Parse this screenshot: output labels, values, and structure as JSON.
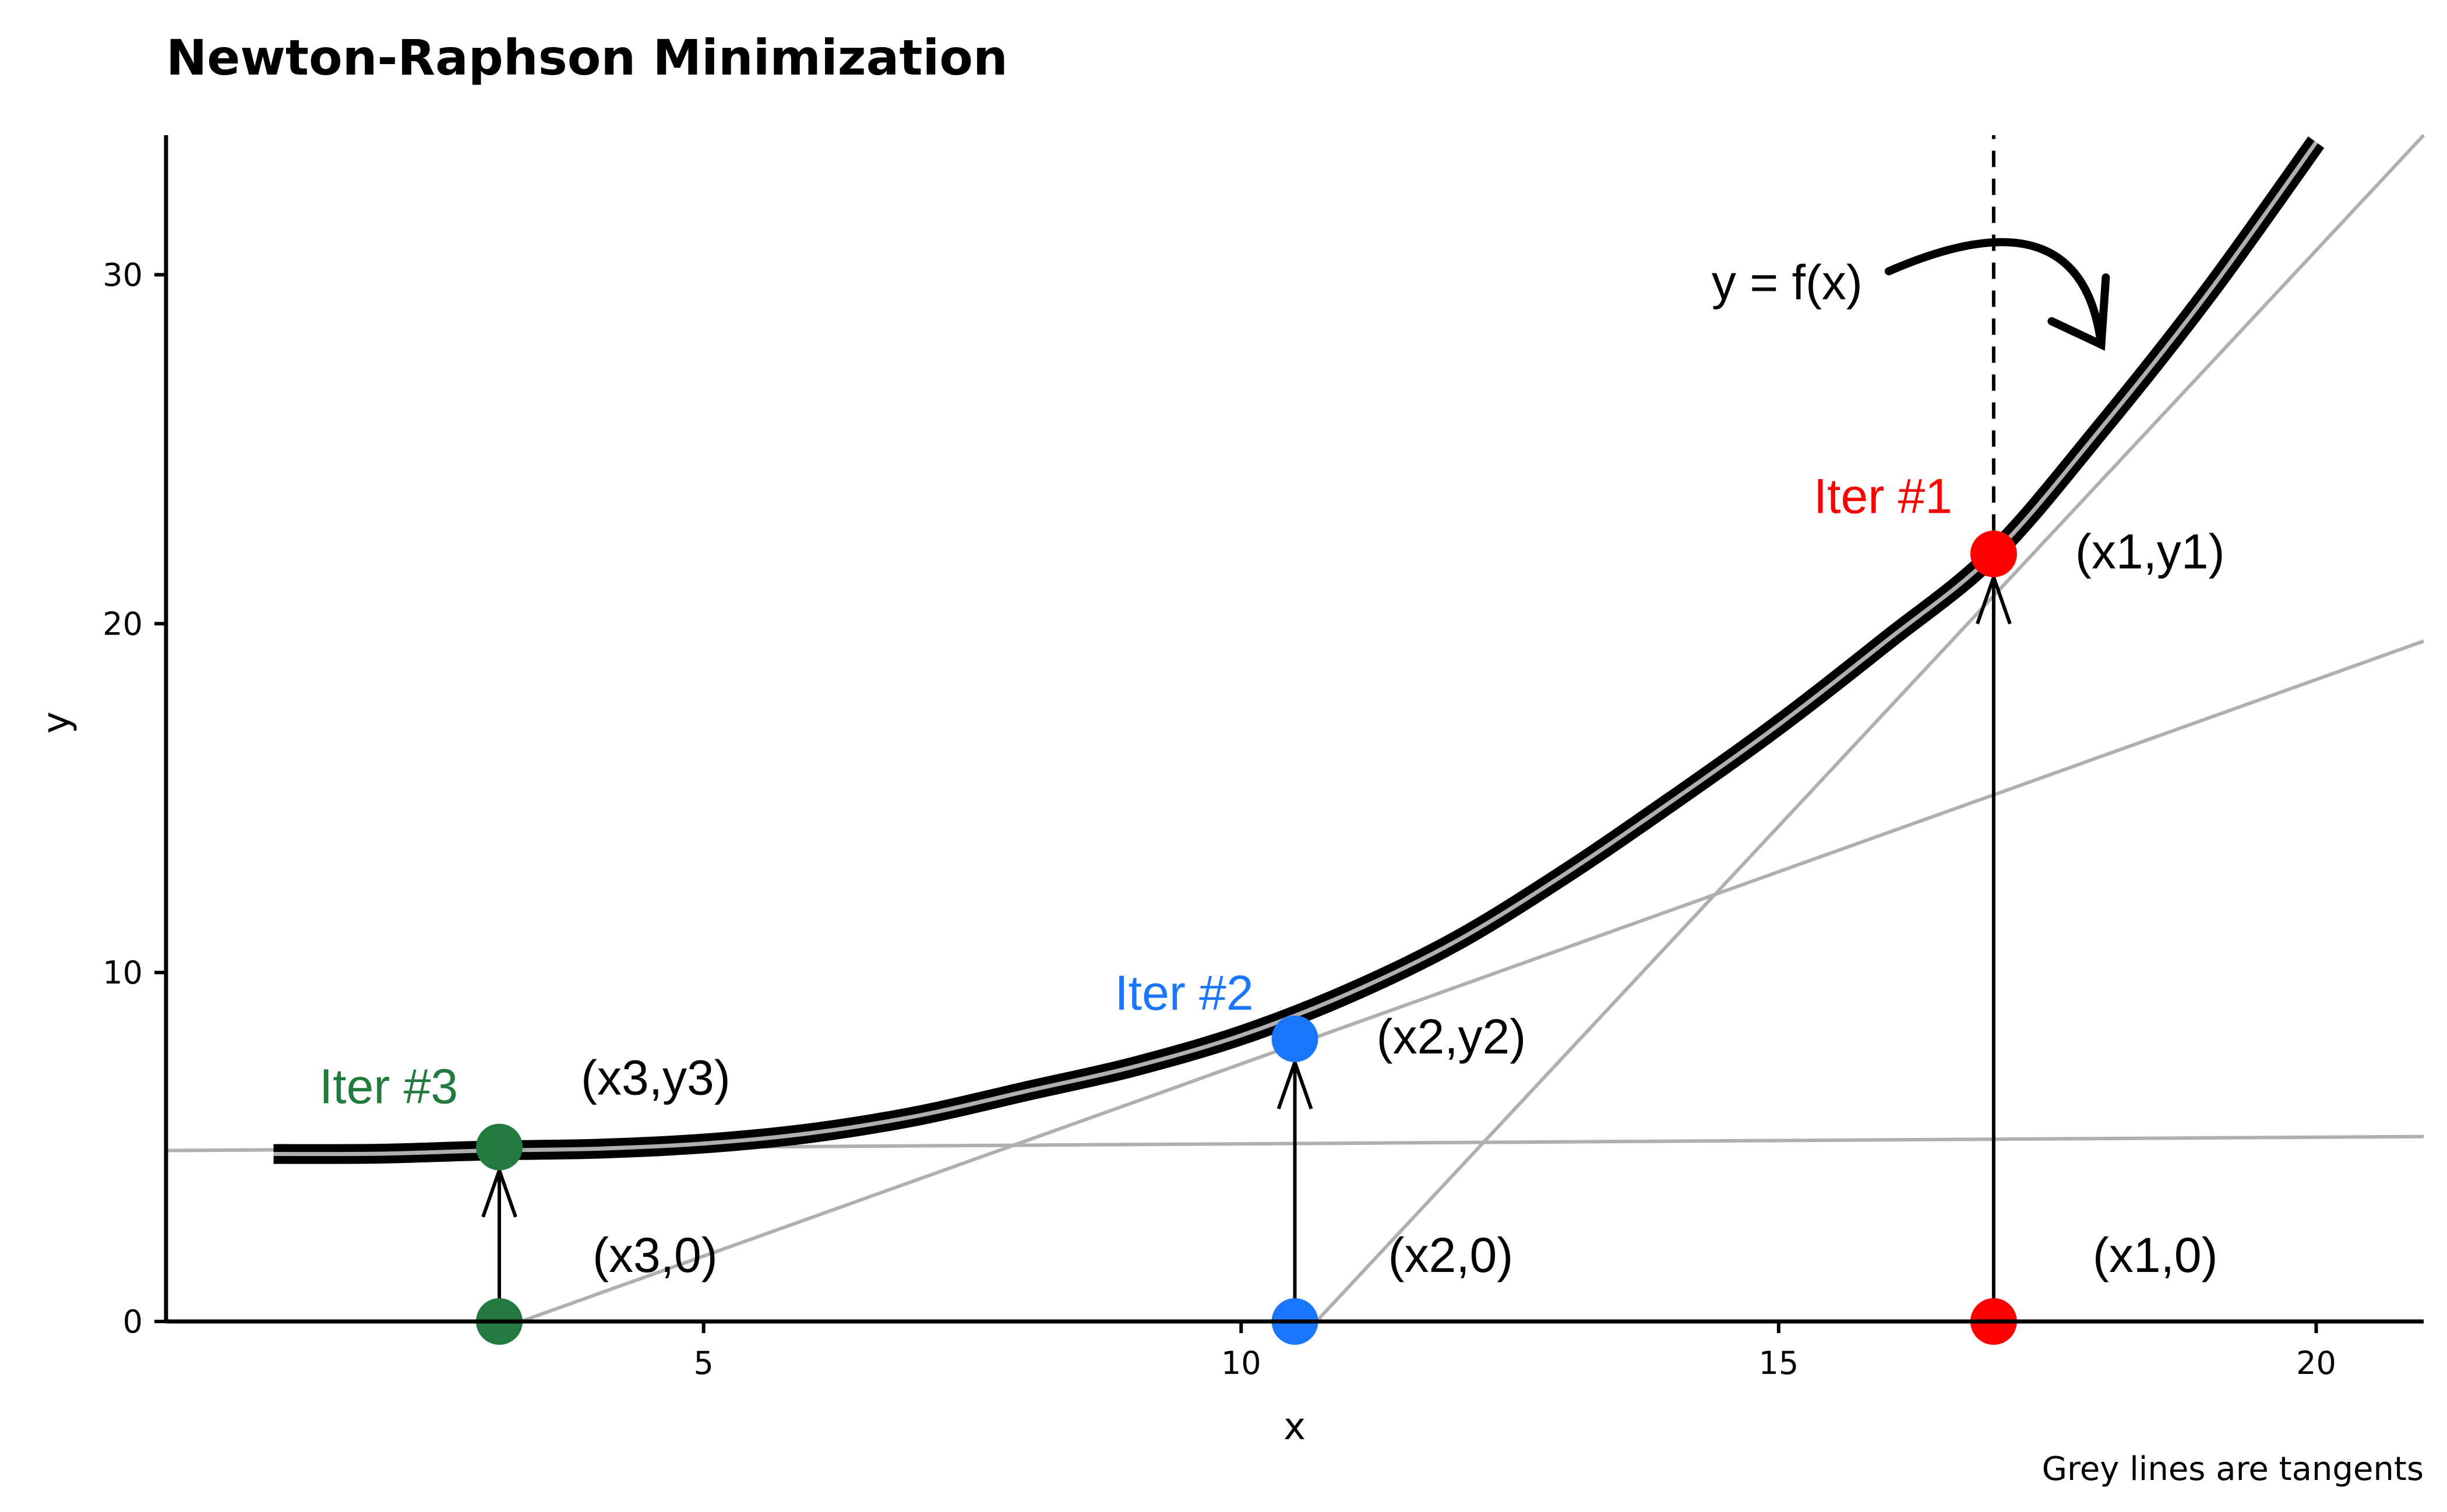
{
  "chart_data": {
    "type": "line",
    "title": "Newton-Raphson Minimization",
    "xlabel": "x",
    "ylabel": "y",
    "caption": "Grey lines are tangents",
    "xlim": [
      0,
      21
    ],
    "ylim": [
      0,
      34
    ],
    "xticks": [
      5,
      10,
      15,
      20
    ],
    "yticks": [
      0,
      10,
      20,
      30
    ],
    "grid": false,
    "curve": {
      "label": "y = f(x)",
      "x": [
        1,
        2,
        3,
        4,
        5,
        6,
        7,
        8,
        9,
        10,
        11,
        12,
        13,
        14,
        15,
        16,
        17,
        18,
        19,
        20
      ],
      "y": [
        4.8,
        4.81,
        4.9,
        4.95,
        5.1,
        5.4,
        5.9,
        6.6,
        7.3,
        8.2,
        9.4,
        10.9,
        12.8,
        14.9,
        17.1,
        19.5,
        22.0,
        25.6,
        29.5,
        33.8
      ]
    },
    "tangents": [
      {
        "x": [
          0,
          21
        ],
        "y": [
          4.9,
          5.3
        ]
      },
      {
        "x": [
          3.3,
          21
        ],
        "y": [
          0,
          19.5
        ]
      },
      {
        "x": [
          10.7,
          21
        ],
        "y": [
          0,
          34
        ]
      }
    ],
    "dashed_vline": {
      "x": 17,
      "y": [
        22,
        34
      ]
    },
    "iterations": [
      {
        "label": "Iter #1",
        "color": "#FF0000",
        "x": 17,
        "y": 22,
        "point_label": "(x1,y1)",
        "base_label": "(x1,0)"
      },
      {
        "label": "Iter #2",
        "color": "#1A75FF",
        "x": 10.5,
        "y": 8.1,
        "point_label": "(x2,y2)",
        "base_label": "(x2,0)"
      },
      {
        "label": "Iter #3",
        "color": "#237A3F",
        "x": 3.1,
        "y": 5.0,
        "point_label": "(x3,y3)",
        "base_label": "(x3,0)"
      }
    ]
  }
}
